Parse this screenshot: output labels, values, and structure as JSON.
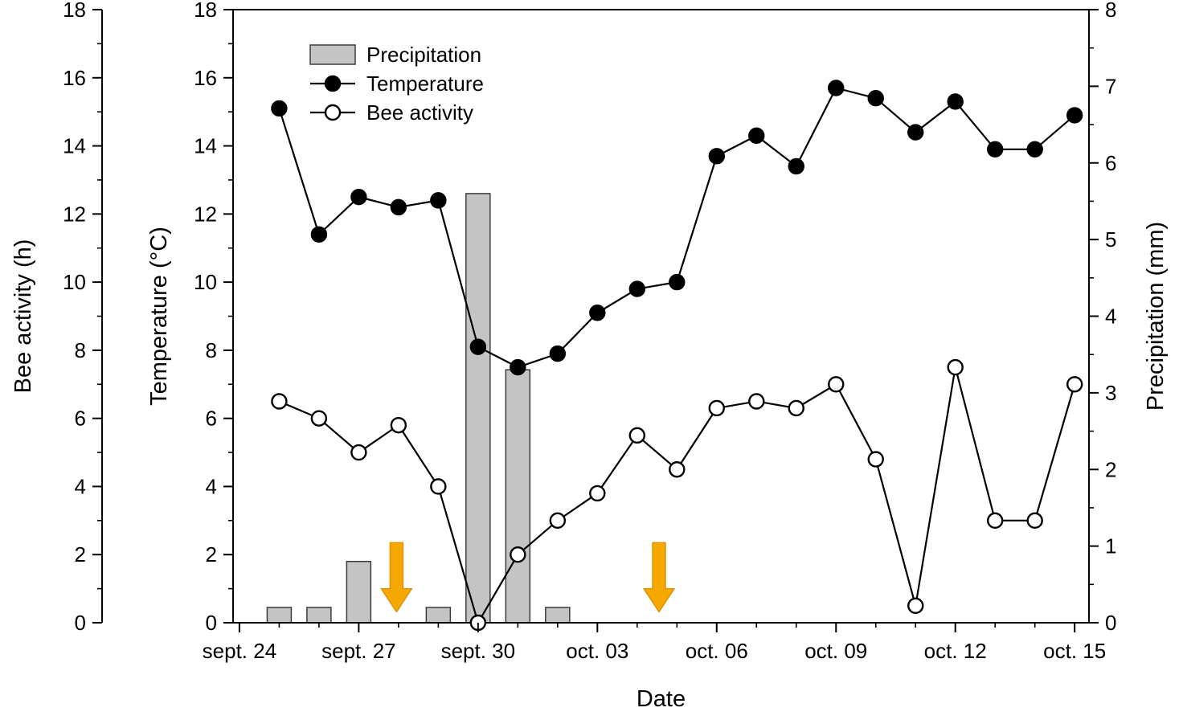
{
  "chart_data": {
    "type": "bar+line",
    "title": "",
    "xlabel": "Date",
    "x_unit": "days since sept. 24",
    "x_range_days": [
      -0.16,
      21.36
    ],
    "x_tick_days": [
      0,
      3,
      6,
      9,
      12,
      15,
      18,
      21
    ],
    "x_tick_labels": [
      "sept. 24",
      "sept. 27",
      "sept. 30",
      "oct. 03",
      "oct. 06",
      "oct. 09",
      "oct. 12",
      "oct. 15"
    ],
    "grid": false,
    "legend_position": "top-left-inside",
    "axes": {
      "bee": {
        "label": "Bee activity (h)",
        "min": 0,
        "max": 18,
        "tick_step": 2,
        "side": "outer-left"
      },
      "temperature": {
        "label": "Temperature (°C)",
        "min": 0,
        "max": 18,
        "tick_step": 2,
        "side": "left"
      },
      "precipitation": {
        "label": "Precipitation (mm)",
        "min": 0,
        "max": 8,
        "tick_step": 1,
        "side": "right"
      }
    },
    "series": [
      {
        "name": "Precipitation",
        "type": "bar",
        "axis": "precipitation",
        "unit": "mm",
        "fill": "#c4c4c4",
        "stroke": "#3c3c3c",
        "x_days": [
          1,
          2,
          3,
          5,
          6,
          7,
          8
        ],
        "values": [
          0.2,
          0.2,
          0.8,
          0.2,
          5.6,
          3.3,
          0.2
        ]
      },
      {
        "name": "Temperature",
        "type": "line",
        "axis": "temperature",
        "unit": "°C",
        "marker": "filled-circle",
        "line_color": "#000000",
        "x_days": [
          1,
          2,
          3,
          4,
          5,
          6,
          7,
          8,
          9,
          10,
          11,
          12,
          13,
          14,
          15,
          16,
          17,
          18,
          19,
          20,
          21
        ],
        "values": [
          15.1,
          11.4,
          12.5,
          12.2,
          12.4,
          8.1,
          7.5,
          7.9,
          9.1,
          9.8,
          10.0,
          13.7,
          14.3,
          13.4,
          15.7,
          15.4,
          14.4,
          15.3,
          13.9,
          13.9,
          14.9
        ]
      },
      {
        "name": "Bee activity",
        "type": "line",
        "axis": "bee",
        "unit": "h",
        "marker": "open-circle",
        "line_color": "#000000",
        "x_days": [
          1,
          2,
          3,
          4,
          5,
          6,
          7,
          8,
          9,
          10,
          11,
          12,
          13,
          14,
          15,
          16,
          17,
          18,
          19,
          20,
          21
        ],
        "values": [
          6.5,
          6.0,
          5.0,
          5.8,
          4.0,
          0.0,
          2.0,
          3.0,
          3.8,
          5.5,
          4.5,
          6.3,
          6.5,
          6.3,
          7.0,
          4.8,
          0.5,
          7.5,
          3.0,
          3.0,
          7.0
        ]
      }
    ],
    "legend": {
      "items": [
        "Precipitation",
        "Temperature",
        "Bee activity"
      ]
    },
    "annotations": [
      {
        "type": "arrow-down",
        "color": "#f5a800",
        "stroke": "#dd9400",
        "x_day": 3.95,
        "near_date": "sept. 28"
      },
      {
        "type": "arrow-down",
        "color": "#f5a800",
        "stroke": "#dd9400",
        "x_day": 10.55,
        "near_date": "oct. 05"
      }
    ]
  }
}
